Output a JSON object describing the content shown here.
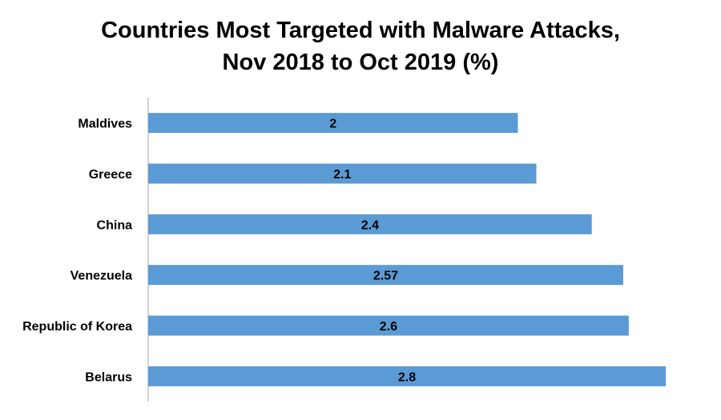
{
  "chart_data": {
    "type": "bar",
    "orientation": "horizontal",
    "title_line1": "Countries Most Targeted with Malware Attacks,",
    "title_line2": "Nov 2018 to Oct 2019 (%)",
    "categories": [
      "Maldives",
      "Greece",
      "China",
      "Venezuela",
      "Republic of Korea",
      "Belarus"
    ],
    "values": [
      2,
      2.1,
      2.4,
      2.57,
      2.6,
      2.8
    ],
    "data_labels": [
      "2",
      "2.1",
      "2.4",
      "2.57",
      "2.6",
      "2.8"
    ],
    "xlim": [
      0,
      2.8
    ],
    "xlabel": "",
    "ylabel": "",
    "grid": false,
    "legend": "none",
    "bar_color": "#5b9bd5",
    "axis_color": "#a6a6a6"
  }
}
